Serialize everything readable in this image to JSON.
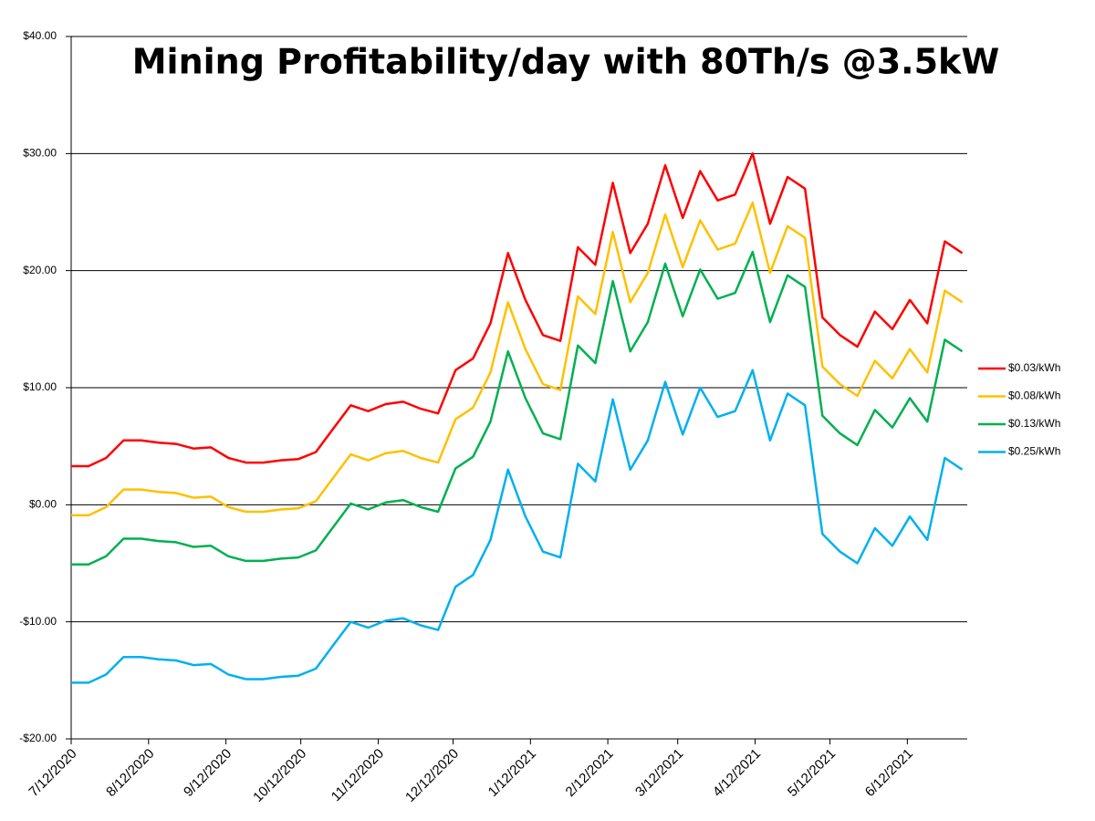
{
  "chart_data": {
    "type": "line",
    "title": "Mining Profitability/day with 80Th/s @3.5kW",
    "x": [
      "2020-07-12",
      "2020-07-19",
      "2020-07-26",
      "2020-08-02",
      "2020-08-09",
      "2020-08-16",
      "2020-08-23",
      "2020-08-30",
      "2020-09-06",
      "2020-09-13",
      "2020-09-20",
      "2020-09-27",
      "2020-10-04",
      "2020-10-11",
      "2020-10-18",
      "2020-10-25",
      "2020-11-01",
      "2020-11-08",
      "2020-11-15",
      "2020-11-22",
      "2020-11-29",
      "2020-12-06",
      "2020-12-13",
      "2020-12-20",
      "2020-12-27",
      "2021-01-03",
      "2021-01-10",
      "2021-01-17",
      "2021-01-24",
      "2021-01-31",
      "2021-02-07",
      "2021-02-14",
      "2021-02-21",
      "2021-02-28",
      "2021-03-07",
      "2021-03-14",
      "2021-03-21",
      "2021-03-28",
      "2021-04-04",
      "2021-04-11",
      "2021-04-18",
      "2021-04-25",
      "2021-05-02",
      "2021-05-09",
      "2021-05-16",
      "2021-05-23",
      "2021-05-30",
      "2021-06-06",
      "2021-06-13",
      "2021-06-20",
      "2021-06-27",
      "2021-07-04"
    ],
    "series": [
      {
        "name": "$0.03/kWh",
        "color": "#ff0000",
        "values": [
          3.3,
          3.3,
          4.0,
          5.5,
          5.5,
          5.3,
          5.2,
          4.8,
          4.9,
          4.0,
          3.6,
          3.6,
          3.8,
          3.9,
          4.5,
          6.5,
          8.5,
          8.0,
          8.6,
          8.8,
          8.2,
          7.8,
          11.5,
          12.5,
          15.5,
          21.5,
          17.5,
          14.5,
          14.0,
          22.0,
          20.5,
          27.5,
          21.5,
          24.0,
          29.0,
          24.5,
          28.5,
          26.0,
          26.5,
          30.0,
          24.0,
          28.0,
          27.0,
          16.0,
          14.5,
          13.5,
          16.5,
          15.0,
          17.5,
          15.5,
          22.5,
          21.5
        ]
      },
      {
        "name": "$0.08/kWh",
        "color": "#ffc000",
        "values": [
          -0.9,
          -0.9,
          -0.2,
          1.3,
          1.3,
          1.1,
          1.0,
          0.6,
          0.7,
          -0.2,
          -0.6,
          -0.6,
          -0.4,
          -0.3,
          0.3,
          2.3,
          4.3,
          3.8,
          4.4,
          4.6,
          4.0,
          3.6,
          7.3,
          8.3,
          11.3,
          17.3,
          13.3,
          10.3,
          9.8,
          17.8,
          16.3,
          23.3,
          17.3,
          19.8,
          24.8,
          20.3,
          24.3,
          21.8,
          22.3,
          25.8,
          19.8,
          23.8,
          22.8,
          11.8,
          10.3,
          9.3,
          12.3,
          10.8,
          13.3,
          11.3,
          18.3,
          17.3
        ]
      },
      {
        "name": "$0.13/kWh",
        "color": "#00b050",
        "values": [
          -5.1,
          -5.1,
          -4.4,
          -2.9,
          -2.9,
          -3.1,
          -3.2,
          -3.6,
          -3.5,
          -4.4,
          -4.8,
          -4.8,
          -4.6,
          -4.5,
          -3.9,
          -1.9,
          0.1,
          -0.4,
          0.2,
          0.4,
          -0.2,
          -0.6,
          3.1,
          4.1,
          7.1,
          13.1,
          9.1,
          6.1,
          5.6,
          13.6,
          12.1,
          19.1,
          13.1,
          15.6,
          20.6,
          16.1,
          20.1,
          17.6,
          18.1,
          21.6,
          15.6,
          19.6,
          18.6,
          7.6,
          6.1,
          5.1,
          8.1,
          6.6,
          9.1,
          7.1,
          14.1,
          13.1
        ]
      },
      {
        "name": "$0.25/kWh",
        "color": "#00b0f0",
        "values": [
          -15.2,
          -15.2,
          -14.5,
          -13.0,
          -13.0,
          -13.2,
          -13.3,
          -13.7,
          -13.6,
          -14.5,
          -14.9,
          -14.9,
          -14.7,
          -14.6,
          -14.0,
          -12.0,
          -10.0,
          -10.5,
          -9.9,
          -9.7,
          -10.3,
          -10.7,
          -7.0,
          -6.0,
          -3.0,
          3.0,
          -1.0,
          -4.0,
          -4.5,
          3.5,
          2.0,
          9.0,
          3.0,
          5.5,
          10.5,
          6.0,
          10.0,
          7.5,
          8.0,
          11.5,
          5.5,
          9.5,
          8.5,
          -2.5,
          -4.0,
          -5.0,
          -2.0,
          -3.5,
          -1.0,
          -3.0,
          4.0,
          3.0
        ]
      }
    ],
    "xlim": [
      "2020-07-12",
      "2021-07-06"
    ],
    "xticks": [
      {
        "value": "2020-07-12",
        "label": "7/12/2020"
      },
      {
        "value": "2020-08-12",
        "label": "8/12/2020"
      },
      {
        "value": "2020-09-12",
        "label": "9/12/2020"
      },
      {
        "value": "2020-10-12",
        "label": "10/12/2020"
      },
      {
        "value": "2020-11-12",
        "label": "11/12/2020"
      },
      {
        "value": "2020-12-12",
        "label": "12/12/2020"
      },
      {
        "value": "2021-01-12",
        "label": "1/12/2021"
      },
      {
        "value": "2021-02-12",
        "label": "2/12/2021"
      },
      {
        "value": "2021-03-12",
        "label": "3/12/2021"
      },
      {
        "value": "2021-04-12",
        "label": "4/12/2021"
      },
      {
        "value": "2021-05-12",
        "label": "5/12/2021"
      },
      {
        "value": "2021-06-12",
        "label": "6/12/2021"
      }
    ],
    "ylim": [
      -20,
      40
    ],
    "yticks": [
      {
        "value": -20,
        "label": "-$20.00"
      },
      {
        "value": -10,
        "label": "-$10.00"
      },
      {
        "value": 0,
        "label": "$0.00"
      },
      {
        "value": 10,
        "label": "$10.00"
      },
      {
        "value": 20,
        "label": "$20.00"
      },
      {
        "value": 30,
        "label": "$30.00"
      },
      {
        "value": 40,
        "label": "$40.00"
      }
    ],
    "grid": true,
    "legend": "right"
  }
}
